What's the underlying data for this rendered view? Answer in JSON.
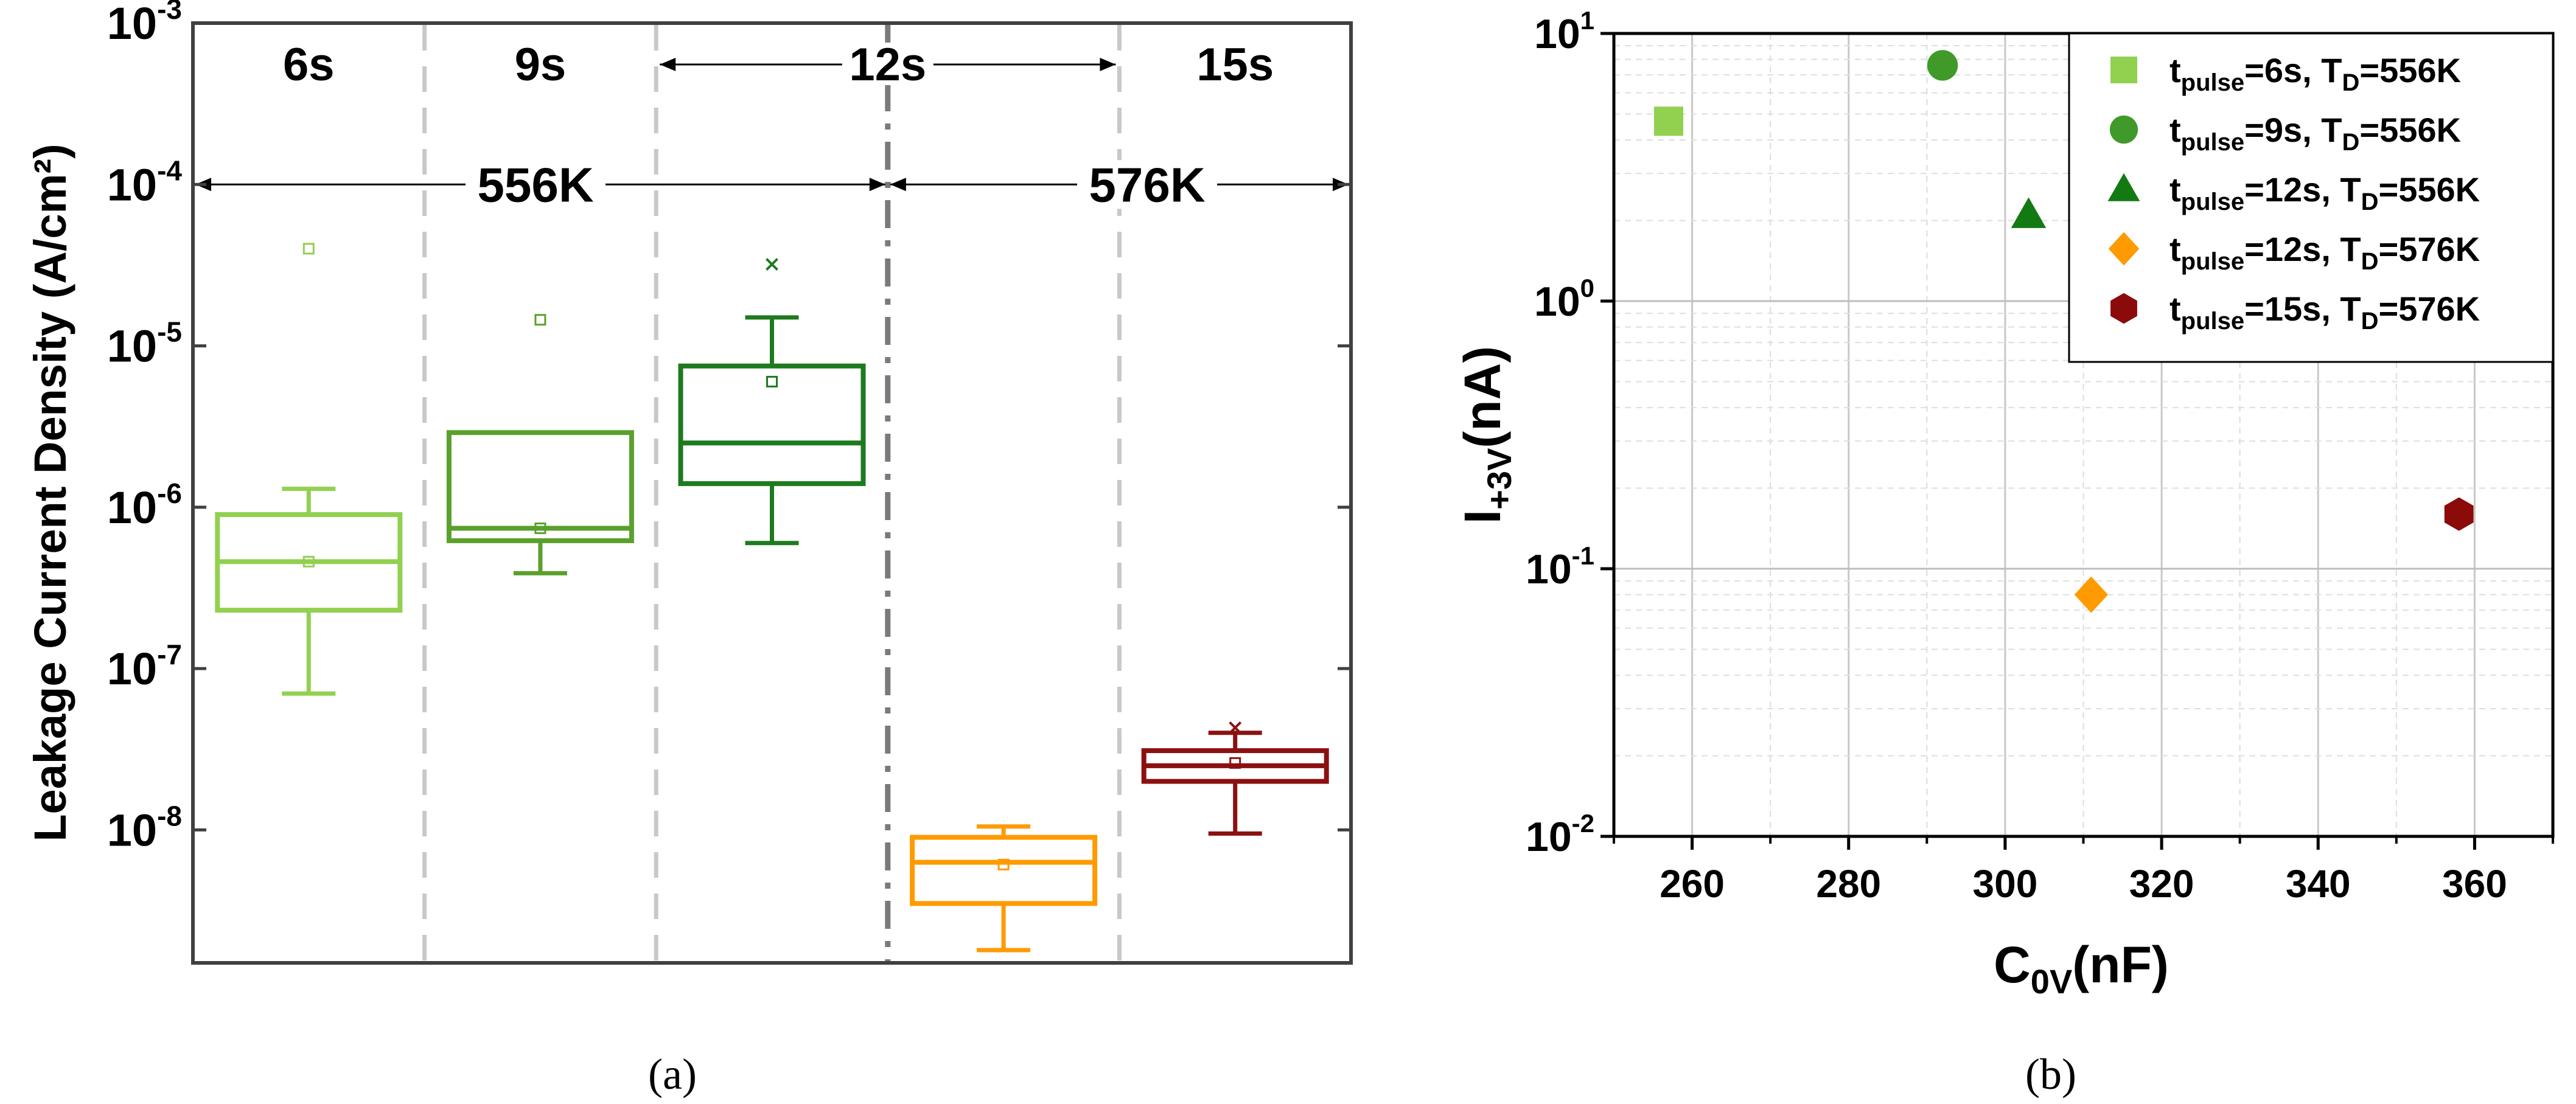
{
  "captions": {
    "a": "(a)",
    "b": "(b)"
  },
  "chart_data": [
    {
      "type": "box",
      "ylabel": "Leakage Current Density (A/cm²)",
      "yscale": "log",
      "ylim": [
        1.5e-09,
        0.001
      ],
      "yticks": [
        {
          "value": 0.001,
          "base": "10",
          "exp": "-3"
        },
        {
          "value": 0.0001,
          "base": "10",
          "exp": "-4"
        },
        {
          "value": 1e-05,
          "base": "10",
          "exp": "-5"
        },
        {
          "value": 1e-06,
          "base": "10",
          "exp": "-6"
        },
        {
          "value": 1e-07,
          "base": "10",
          "exp": "-7"
        },
        {
          "value": 1e-08,
          "base": "10",
          "exp": "-8"
        }
      ],
      "groups": [
        {
          "label": "6s",
          "color": "#92d050",
          "q1": 2.3e-07,
          "median": 4.6e-07,
          "q3": 9e-07,
          "whisker_low": 7e-08,
          "whisker_high": 1.3e-06,
          "mean": 4.6e-07,
          "outliers": [
            4e-05
          ]
        },
        {
          "label": "9s",
          "color": "#5aa02c",
          "q1": 6.2e-07,
          "median": 7.4e-07,
          "q3": 2.9e-06,
          "whisker_low": 3.9e-07,
          "whisker_high": 2.9e-06,
          "mean": 7.4e-07,
          "outliers": [
            1.45e-05
          ]
        },
        {
          "label": "12s",
          "color": "#1e7a1e",
          "q1": 1.4e-06,
          "median": 2.5e-06,
          "q3": 7.5e-06,
          "whisker_low": 6e-07,
          "whisker_high": 1.5e-05,
          "mean": 6e-06,
          "outliers": [
            3.2e-05
          ]
        },
        {
          "label": "12s",
          "color": "#ff9a00",
          "q1": 3.5e-09,
          "median": 6.3e-09,
          "q3": 9e-09,
          "whisker_low": 1.8e-09,
          "whisker_high": 1.05e-08,
          "mean": 6.1e-09,
          "outliers": []
        },
        {
          "label": "15s",
          "color": "#8b1010",
          "q1": 2e-08,
          "median": 2.5e-08,
          "q3": 3.1e-08,
          "whisker_low": 9.5e-09,
          "whisker_high": 4e-08,
          "mean": 2.6e-08,
          "outliers": [
            4.3e-08
          ]
        }
      ],
      "top_labels": [
        "6s",
        "9s",
        "12s",
        "15s"
      ],
      "temperature_labels": [
        {
          "text": "556K",
          "color": "#1010e0"
        },
        {
          "text": "576K",
          "color": "#e01020"
        }
      ]
    },
    {
      "type": "scatter",
      "xlabel": {
        "base": "C",
        "sub": "0V",
        "rest": "(nF)"
      },
      "ylabel": {
        "base": "I",
        "sub": "+3V",
        "rest": "(nA)"
      },
      "yscale": "log",
      "xlim": [
        250,
        370
      ],
      "ylim": [
        0.01,
        10
      ],
      "xticks": [
        "260",
        "280",
        "300",
        "320",
        "340",
        "360"
      ],
      "yticks": [
        {
          "value": 10,
          "base": "10",
          "exp": "1"
        },
        {
          "value": 1,
          "base": "10",
          "exp": "0"
        },
        {
          "value": 0.1,
          "base": "10",
          "exp": "-1"
        },
        {
          "value": 0.01,
          "base": "10",
          "exp": "-2"
        }
      ],
      "grid": true,
      "legend_position": "top-right",
      "series": [
        {
          "name_parts": [
            "t",
            "pulse",
            "=6s, T",
            "D",
            "=556K"
          ],
          "marker": "square",
          "color": "#92d050",
          "x": 257,
          "y": 4.7
        },
        {
          "name_parts": [
            "t",
            "pulse",
            "=9s, T",
            "D",
            "=556K"
          ],
          "marker": "circle",
          "color": "#3f9a2a",
          "x": 292,
          "y": 7.6
        },
        {
          "name_parts": [
            "t",
            "pulse",
            "=12s, T",
            "D",
            "=556K"
          ],
          "marker": "triangle",
          "color": "#137a13",
          "x": 303,
          "y": 2.1
        },
        {
          "name_parts": [
            "t",
            "pulse",
            "=12s, T",
            "D",
            "=576K"
          ],
          "marker": "diamond",
          "color": "#ff9a00",
          "x": 311,
          "y": 0.08
        },
        {
          "name_parts": [
            "t",
            "pulse",
            "=15s, T",
            "D",
            "=576K"
          ],
          "marker": "hexagon",
          "color": "#8b0a0a",
          "x": 358,
          "y": 0.16
        }
      ]
    }
  ]
}
